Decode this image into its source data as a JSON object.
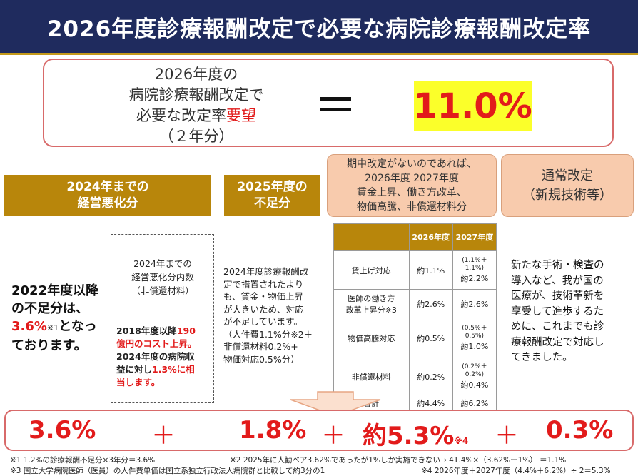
{
  "header": {
    "title": "2026年度診療報酬改定で必要な病院診療報酬改定率"
  },
  "equation": {
    "line1": "2026年度の",
    "line2": "病院診療報酬改定で",
    "line3a": "必要な改定率",
    "line3b": "要望",
    "line4": "（２年分）",
    "equals": "＝",
    "result": "11.0%"
  },
  "categories": {
    "cat1": {
      "line1": "2024年までの",
      "line2": "経営悪化分"
    },
    "cat2": {
      "line1": "2025年度の",
      "line2": "不足分"
    },
    "cat3": {
      "line1": "期中改定がないのであれば、",
      "line2": "2026年度 2027年度",
      "line3": "賃金上昇、働き方改革、",
      "line4": "物価高騰、非償還材料分"
    },
    "cat4": {
      "line1": "通常改定",
      "line2": "（新規技術等）"
    }
  },
  "col1": {
    "l1": "2022年度以降",
    "l2": "の不足分は、",
    "value": "3.6%",
    "ref": "※1",
    "l3": "となっ",
    "l4": "ております。"
  },
  "col1b": {
    "title1": "2024年までの",
    "title2": "経営悪化分内数",
    "title3": "（非償還材料）",
    "b1a": "2018年度以降",
    "b1b": "190",
    "b2": "億円のコスト上昇。",
    "b3": "2024年度の病院収",
    "b4a": "益に対し",
    "b4b": "1.3%に相",
    "b5": "当します。"
  },
  "col2": {
    "l1": "2024年度診療報酬改",
    "l2": "定で措置されたより",
    "l3": "も、賃金・物価上昇",
    "l4": "が大きいため、対応",
    "l5": "が不足しています。",
    "l6": "（人件費1.1%分※2＋",
    "l7": "非償還材料0.2%+",
    "l8": "物価対応0.5%分）"
  },
  "table": {
    "headers": {
      "y2026": "2026年度",
      "y2027": "2027年度"
    },
    "rows": [
      {
        "label": "賃上げ対応",
        "label2": "",
        "v2026": "約1.1%",
        "v2027_small1": "(1.1%＋",
        "v2027_small2": "1.1%)",
        "v2027": "約2.2%"
      },
      {
        "label": "医師の働き方",
        "label2": "改革上昇分※3",
        "v2026": "約2.6%",
        "v2027_small1": "",
        "v2027_small2": "",
        "v2027": "約2.6%"
      },
      {
        "label": "物価高騰対応",
        "label2": "",
        "v2026": "約0.5%",
        "v2027_small1": "(0.5%＋",
        "v2027_small2": "0.5%)",
        "v2027": "約1.0%"
      },
      {
        "label": "非償還材料",
        "label2": "",
        "v2026": "約0.2%",
        "v2027_small1": "(0.2%＋",
        "v2027_small2": "0.2%)",
        "v2027": "約0.4%"
      },
      {
        "label": "合計",
        "label2": "",
        "v2026": "約4.4%",
        "v2027_small1": "",
        "v2027_small2": "",
        "v2027": "約6.2%"
      }
    ]
  },
  "col4": {
    "l1": "新たな手術・検査の",
    "l2": "導入など、我が国の",
    "l3": "医療が、技術革新を",
    "l4": "享受して進歩するた",
    "l5": "めに、これまでも診",
    "l6": "療報酬改定で対応し",
    "l7": "てきました。"
  },
  "sum": {
    "v1": "3.6%",
    "p1": "＋",
    "v2": "1.8%",
    "p2": "＋",
    "v3": "約5.3%",
    "v3note": "※4",
    "p3": "＋",
    "v4": "0.3%"
  },
  "notes": {
    "n1": "※1 1.2%の診療報酬不足分×3年分＝3.6%",
    "n2": "※2 2025年に人勧ベア3.62%であったが1%しか実施できない→ 41.4%×（3.62%ー1%） ＝1.1%",
    "n3": "※3 国立大学病院医師（医員）の人件費単価は国立系独立行政法人病院群と比較して約3分の1",
    "n4": "※4 2026年度＋2027年度（4.4%＋6.2%）÷ 2＝5.3%"
  },
  "colors": {
    "navy": "#1f2b5e",
    "gold": "#b8860b",
    "red": "#e21b1b",
    "peach": "#f8cbad",
    "yellow": "#fbff2a"
  }
}
